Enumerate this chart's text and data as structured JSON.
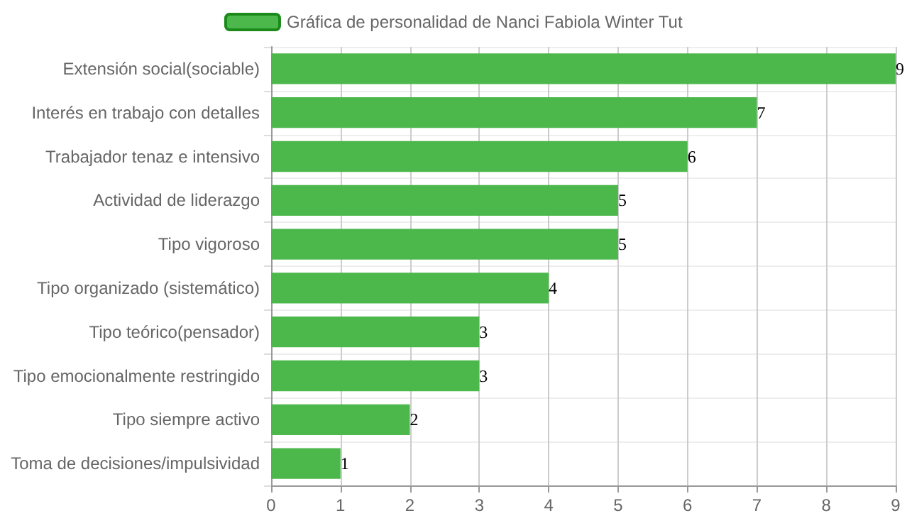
{
  "chart_data": {
    "type": "bar",
    "orientation": "horizontal",
    "categories": [
      "Extensión social(sociable)",
      "Interés en trabajo con detalles",
      "Trabajador tenaz e intensivo",
      "Actividad de liderazgo",
      "Tipo vigoroso",
      "Tipo organizado (sistemático)",
      "Tipo teórico(pensador)",
      "Tipo emocionalmente restringido",
      "Tipo siempre activo",
      "Toma de decisiones/impulsividad"
    ],
    "series": [
      {
        "name": "Gráfica de personalidad de Nanci Fabiola Winter Tut",
        "color": "#4cb84c",
        "values": [
          9,
          7,
          6,
          5,
          5,
          4,
          3,
          3,
          2,
          1
        ]
      }
    ],
    "xlim": [
      0,
      9
    ],
    "xticks": [
      0,
      1,
      2,
      3,
      4,
      5,
      6,
      7,
      8,
      9
    ],
    "grid": true,
    "legend": "top",
    "data_labels": true
  }
}
